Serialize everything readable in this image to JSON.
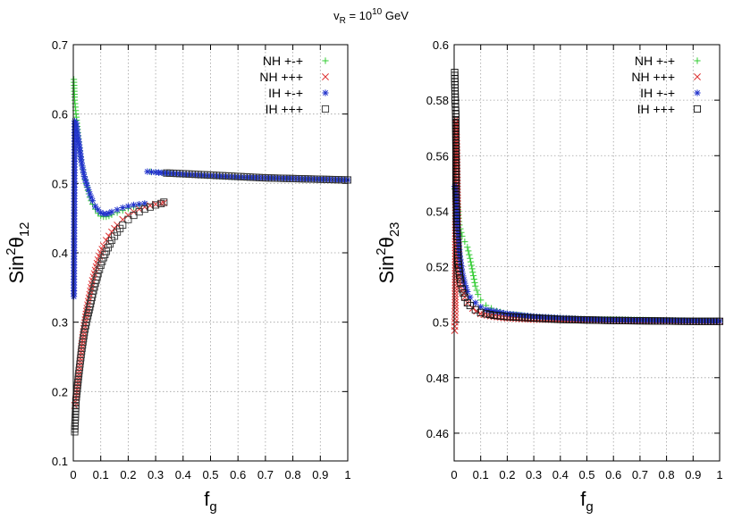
{
  "figure": {
    "title_main": "v",
    "title_sub": "R",
    "title_eq": " = 10",
    "title_sup": "10",
    "title_unit": " GeV"
  },
  "chart_data": [
    {
      "type": "scatter",
      "xlabel_main": "f",
      "xlabel_sub": "g",
      "ylabel_main": "Sin",
      "ylabel_sup": "2",
      "ylabel_theta": "θ",
      "ylabel_sub": "12",
      "xlim": [
        0,
        1
      ],
      "ylim": [
        0.1,
        0.7
      ],
      "x_ticks": [
        "0",
        "0.1",
        "0.2",
        "0.3",
        "0.4",
        "0.5",
        "0.6",
        "0.7",
        "0.8",
        "0.9",
        "1"
      ],
      "y_ticks": [
        "0.1",
        "0.2",
        "0.3",
        "0.4",
        "0.5",
        "0.6",
        "0.7"
      ],
      "grid": true,
      "legend_position": "top-right",
      "series": [
        {
          "name": "NH +-+",
          "marker": "plus",
          "color": "#33cc33",
          "points": [
            [
              0.002,
              0.65
            ],
            [
              0.005,
              0.62
            ],
            [
              0.01,
              0.6
            ],
            [
              0.02,
              0.56
            ],
            [
              0.03,
              0.53
            ],
            [
              0.04,
              0.51
            ],
            [
              0.05,
              0.495
            ],
            [
              0.06,
              0.48
            ],
            [
              0.07,
              0.47
            ],
            [
              0.08,
              0.463
            ],
            [
              0.09,
              0.457
            ],
            [
              0.1,
              0.453
            ],
            [
              0.11,
              0.452
            ],
            [
              0.12,
              0.452
            ],
            [
              0.13,
              0.453
            ],
            [
              0.14,
              0.455
            ],
            [
              0.16,
              0.458
            ],
            [
              0.18,
              0.461
            ],
            [
              0.2,
              0.464
            ],
            [
              0.22,
              0.466
            ],
            [
              0.24,
              0.468
            ],
            [
              0.26,
              0.47
            ],
            [
              0.28,
              0.517
            ],
            [
              0.3,
              0.516
            ],
            [
              0.4,
              0.513
            ],
            [
              0.5,
              0.511
            ],
            [
              0.6,
              0.509
            ],
            [
              0.7,
              0.508
            ],
            [
              0.8,
              0.507
            ],
            [
              0.9,
              0.506
            ],
            [
              1.0,
              0.505
            ]
          ]
        },
        {
          "name": "NH +++",
          "marker": "cross",
          "color": "#dd3333",
          "points": [
            [
              0.005,
              0.18
            ],
            [
              0.01,
              0.19
            ],
            [
              0.02,
              0.225
            ],
            [
              0.03,
              0.265
            ],
            [
              0.04,
              0.295
            ],
            [
              0.05,
              0.32
            ],
            [
              0.06,
              0.34
            ],
            [
              0.07,
              0.36
            ],
            [
              0.08,
              0.375
            ],
            [
              0.09,
              0.39
            ],
            [
              0.1,
              0.4
            ],
            [
              0.11,
              0.41
            ],
            [
              0.12,
              0.418
            ],
            [
              0.14,
              0.43
            ],
            [
              0.16,
              0.44
            ],
            [
              0.18,
              0.448
            ],
            [
              0.2,
              0.454
            ],
            [
              0.22,
              0.459
            ],
            [
              0.24,
              0.463
            ],
            [
              0.26,
              0.466
            ],
            [
              0.28,
              0.468
            ],
            [
              0.3,
              0.47
            ],
            [
              0.32,
              0.471
            ],
            [
              0.33,
              0.472
            ]
          ]
        },
        {
          "name": "IH +-+",
          "marker": "star",
          "color": "#2233cc",
          "points": [
            [
              0.002,
              0.337
            ],
            [
              0.005,
              0.59
            ],
            [
              0.01,
              0.587
            ],
            [
              0.02,
              0.56
            ],
            [
              0.03,
              0.53
            ],
            [
              0.04,
              0.51
            ],
            [
              0.05,
              0.497
            ],
            [
              0.06,
              0.485
            ],
            [
              0.07,
              0.475
            ],
            [
              0.08,
              0.467
            ],
            [
              0.09,
              0.462
            ],
            [
              0.1,
              0.458
            ],
            [
              0.11,
              0.456
            ],
            [
              0.12,
              0.456
            ],
            [
              0.13,
              0.457
            ],
            [
              0.14,
              0.459
            ],
            [
              0.16,
              0.462
            ],
            [
              0.18,
              0.465
            ],
            [
              0.2,
              0.467
            ],
            [
              0.22,
              0.469
            ],
            [
              0.24,
              0.47
            ],
            [
              0.26,
              0.471
            ],
            [
              0.27,
              0.517
            ],
            [
              0.3,
              0.516
            ],
            [
              0.4,
              0.513
            ],
            [
              0.5,
              0.511
            ],
            [
              0.6,
              0.509
            ],
            [
              0.7,
              0.508
            ],
            [
              0.8,
              0.507
            ],
            [
              0.9,
              0.506
            ],
            [
              1.0,
              0.505
            ]
          ]
        },
        {
          "name": "IH +++",
          "marker": "square",
          "color": "#333333",
          "points": [
            [
              0.005,
              0.142
            ],
            [
              0.01,
              0.188
            ],
            [
              0.02,
              0.226
            ],
            [
              0.03,
              0.258
            ],
            [
              0.04,
              0.285
            ],
            [
              0.05,
              0.305
            ],
            [
              0.06,
              0.322
            ],
            [
              0.07,
              0.34
            ],
            [
              0.08,
              0.356
            ],
            [
              0.09,
              0.37
            ],
            [
              0.1,
              0.382
            ],
            [
              0.11,
              0.393
            ],
            [
              0.12,
              0.402
            ],
            [
              0.14,
              0.418
            ],
            [
              0.16,
              0.43
            ],
            [
              0.18,
              0.44
            ],
            [
              0.2,
              0.448
            ],
            [
              0.22,
              0.454
            ],
            [
              0.24,
              0.459
            ],
            [
              0.26,
              0.463
            ],
            [
              0.28,
              0.466
            ],
            [
              0.3,
              0.469
            ],
            [
              0.32,
              0.471
            ],
            [
              0.33,
              0.473
            ],
            [
              0.34,
              0.515
            ],
            [
              0.4,
              0.514
            ],
            [
              0.5,
              0.512
            ],
            [
              0.6,
              0.51
            ],
            [
              0.7,
              0.508
            ],
            [
              0.8,
              0.507
            ],
            [
              0.9,
              0.506
            ],
            [
              1.0,
              0.505
            ]
          ]
        }
      ]
    },
    {
      "type": "scatter",
      "xlabel_main": "f",
      "xlabel_sub": "g",
      "ylabel_main": "Sin",
      "ylabel_sup": "2",
      "ylabel_theta": "θ",
      "ylabel_sub": "23",
      "xlim": [
        0,
        1
      ],
      "ylim": [
        0.45,
        0.6
      ],
      "x_ticks": [
        "0",
        "0.1",
        "0.2",
        "0.3",
        "0.4",
        "0.5",
        "0.6",
        "0.7",
        "0.8",
        "0.9",
        "1"
      ],
      "y_ticks": [
        "0.46",
        "0.48",
        "0.5",
        "0.52",
        "0.54",
        "0.56",
        "0.58",
        "0.6"
      ],
      "grid": true,
      "legend_position": "top-right",
      "series": [
        {
          "name": "NH +-+",
          "marker": "plus",
          "color": "#33cc33",
          "points": [
            [
              0.002,
              0.548
            ],
            [
              0.005,
              0.55
            ],
            [
              0.01,
              0.546
            ],
            [
              0.015,
              0.54
            ],
            [
              0.02,
              0.535
            ],
            [
              0.03,
              0.531
            ],
            [
              0.04,
              0.529
            ],
            [
              0.05,
              0.527
            ],
            [
              0.06,
              0.523
            ],
            [
              0.07,
              0.518
            ],
            [
              0.08,
              0.513
            ],
            [
              0.09,
              0.51
            ],
            [
              0.1,
              0.508
            ],
            [
              0.12,
              0.506
            ],
            [
              0.14,
              0.505
            ],
            [
              0.16,
              0.504
            ],
            [
              0.2,
              0.503
            ],
            [
              0.25,
              0.5025
            ],
            [
              0.3,
              0.502
            ],
            [
              0.4,
              0.5015
            ],
            [
              0.5,
              0.501
            ],
            [
              0.6,
              0.501
            ],
            [
              0.7,
              0.5008
            ],
            [
              0.8,
              0.5006
            ],
            [
              0.9,
              0.5005
            ],
            [
              1.0,
              0.5005
            ]
          ]
        },
        {
          "name": "NH +++",
          "marker": "cross",
          "color": "#dd3333",
          "points": [
            [
              0.002,
              0.497
            ],
            [
              0.003,
              0.5
            ],
            [
              0.004,
              0.505
            ],
            [
              0.005,
              0.53
            ],
            [
              0.006,
              0.56
            ],
            [
              0.007,
              0.573
            ],
            [
              0.008,
              0.57
            ],
            [
              0.01,
              0.562
            ],
            [
              0.012,
              0.55
            ],
            [
              0.015,
              0.53
            ],
            [
              0.02,
              0.52
            ],
            [
              0.03,
              0.513
            ],
            [
              0.04,
              0.509
            ],
            [
              0.05,
              0.507
            ],
            [
              0.07,
              0.505
            ],
            [
              0.1,
              0.503
            ],
            [
              0.15,
              0.502
            ],
            [
              0.2,
              0.5015
            ],
            [
              0.3,
              0.501
            ],
            [
              0.5,
              0.5008
            ],
            [
              0.7,
              0.5005
            ],
            [
              1.0,
              0.5003
            ]
          ]
        },
        {
          "name": "IH +-+",
          "marker": "star",
          "color": "#2233cc",
          "points": [
            [
              0.002,
              0.549
            ],
            [
              0.005,
              0.548
            ],
            [
              0.01,
              0.54
            ],
            [
              0.015,
              0.532
            ],
            [
              0.02,
              0.525
            ],
            [
              0.03,
              0.518
            ],
            [
              0.04,
              0.514
            ],
            [
              0.05,
              0.511
            ],
            [
              0.06,
              0.509
            ],
            [
              0.08,
              0.507
            ],
            [
              0.1,
              0.5055
            ],
            [
              0.12,
              0.5045
            ],
            [
              0.15,
              0.504
            ],
            [
              0.2,
              0.503
            ],
            [
              0.3,
              0.502
            ],
            [
              0.4,
              0.5015
            ],
            [
              0.5,
              0.501
            ],
            [
              0.6,
              0.5008
            ],
            [
              0.7,
              0.5007
            ],
            [
              0.8,
              0.5006
            ],
            [
              0.9,
              0.5005
            ],
            [
              1.0,
              0.5004
            ]
          ]
        },
        {
          "name": "IH +++",
          "marker": "square",
          "color": "#111111",
          "points": [
            [
              0.002,
              0.59
            ],
            [
              0.004,
              0.58
            ],
            [
              0.006,
              0.575
            ],
            [
              0.008,
              0.545
            ],
            [
              0.01,
              0.533
            ],
            [
              0.015,
              0.522
            ],
            [
              0.02,
              0.517
            ],
            [
              0.025,
              0.514
            ],
            [
              0.03,
              0.512
            ],
            [
              0.04,
              0.509
            ],
            [
              0.05,
              0.507
            ],
            [
              0.06,
              0.506
            ],
            [
              0.08,
              0.5045
            ],
            [
              0.1,
              0.5035
            ],
            [
              0.12,
              0.503
            ],
            [
              0.15,
              0.5025
            ],
            [
              0.2,
              0.502
            ],
            [
              0.3,
              0.5015
            ],
            [
              0.4,
              0.501
            ],
            [
              0.5,
              0.5008
            ],
            [
              0.6,
              0.5006
            ],
            [
              0.7,
              0.5005
            ],
            [
              0.8,
              0.5004
            ],
            [
              0.9,
              0.5003
            ],
            [
              1.0,
              0.5003
            ]
          ]
        }
      ]
    }
  ]
}
